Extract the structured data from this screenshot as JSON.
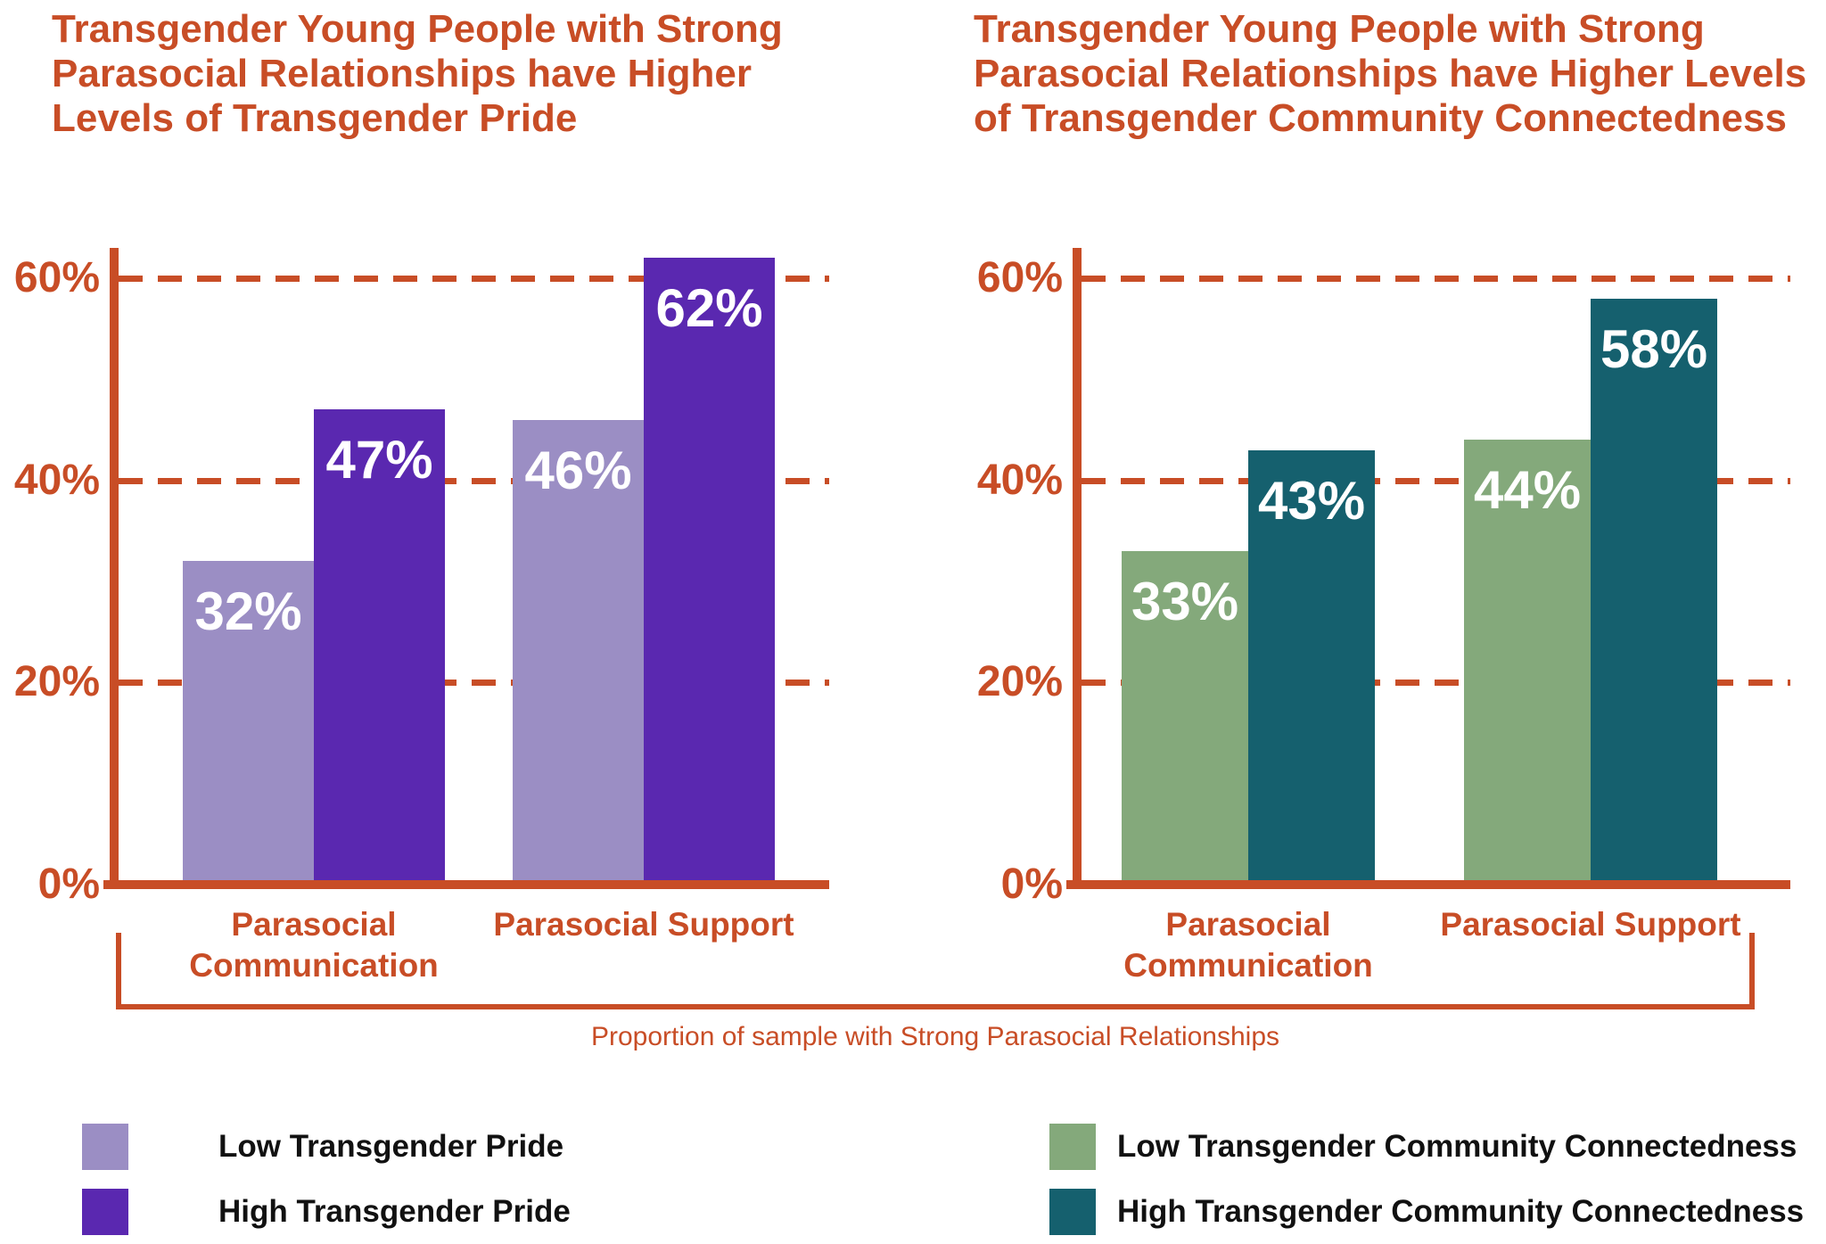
{
  "accent_color": "#C84D26",
  "bracket_label": "Proportion of sample with Strong Parasocial Relationships",
  "chart_data": [
    {
      "type": "bar",
      "title": "Transgender Young People with Strong Parasocial Relationships have Higher Levels of Transgender Pride",
      "categories": [
        "Parasocial Communication",
        "Parasocial Support"
      ],
      "series": [
        {
          "name": "Low Transgender Pride",
          "color": "#9B8EC4",
          "values": [
            32,
            46
          ]
        },
        {
          "name": "High Transgender Pride",
          "color": "#5A28B0",
          "values": [
            47,
            62
          ]
        }
      ],
      "value_labels": [
        [
          "32%",
          "46%"
        ],
        [
          "47%",
          "62%"
        ]
      ],
      "value_suffix": "%",
      "yticks": [
        0,
        20,
        40,
        60
      ],
      "ytick_labels": [
        "0%",
        "20%",
        "40%",
        "60%"
      ],
      "ylim": [
        0,
        65
      ],
      "grid": "dashed-horizontal-orange",
      "legend_position": "bottom-left"
    },
    {
      "type": "bar",
      "title": "Transgender Young People with Strong Parasocial Relationships have Higher Levels of Transgender Community Connectedness",
      "categories": [
        "Parasocial Communication",
        "Parasocial Support"
      ],
      "series": [
        {
          "name": "Low Transgender Community Connectedness",
          "color": "#84A97B",
          "values": [
            33,
            44
          ]
        },
        {
          "name": "High Transgender Community Connectedness",
          "color": "#15606E",
          "values": [
            43,
            58
          ]
        }
      ],
      "value_labels": [
        [
          "33%",
          "44%"
        ],
        [
          "43%",
          "58%"
        ]
      ],
      "value_suffix": "%",
      "yticks": [
        0,
        20,
        40,
        60
      ],
      "ytick_labels": [
        "0%",
        "20%",
        "40%",
        "60%"
      ],
      "ylim": [
        0,
        65
      ],
      "grid": "dashed-horizontal-orange",
      "legend_position": "bottom-right"
    }
  ]
}
